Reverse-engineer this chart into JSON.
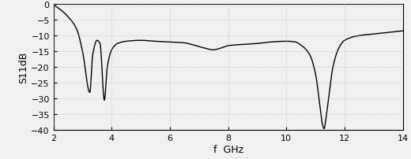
{
  "title": "",
  "xlabel": "f  GHz",
  "ylabel": "S11dB",
  "xlim": [
    2,
    14
  ],
  "ylim": [
    -40,
    0
  ],
  "xticks": [
    2,
    4,
    6,
    8,
    10,
    12,
    14
  ],
  "yticks": [
    0,
    -5,
    -10,
    -15,
    -20,
    -25,
    -30,
    -35,
    -40
  ],
  "line_color": "#000000",
  "line_width": 1.0,
  "background_color": "#f0f0f0",
  "figsize": [
    5.2,
    2.03
  ],
  "dpi": 100,
  "curve_points": [
    [
      2.0,
      -0.3
    ],
    [
      2.2,
      -1.5
    ],
    [
      2.5,
      -4.0
    ],
    [
      2.8,
      -8.0
    ],
    [
      3.0,
      -15.0
    ],
    [
      3.25,
      -28.0
    ],
    [
      3.35,
      -16.0
    ],
    [
      3.5,
      -11.5
    ],
    [
      3.6,
      -12.5
    ],
    [
      3.75,
      -30.5
    ],
    [
      3.85,
      -20.0
    ],
    [
      4.0,
      -14.5
    ],
    [
      4.2,
      -12.5
    ],
    [
      4.5,
      -11.8
    ],
    [
      5.0,
      -11.5
    ],
    [
      5.5,
      -11.8
    ],
    [
      6.0,
      -12.0
    ],
    [
      6.5,
      -12.3
    ],
    [
      7.0,
      -13.5
    ],
    [
      7.5,
      -14.5
    ],
    [
      7.8,
      -13.8
    ],
    [
      8.0,
      -13.2
    ],
    [
      8.5,
      -12.8
    ],
    [
      9.0,
      -12.5
    ],
    [
      9.5,
      -12.0
    ],
    [
      10.0,
      -11.8
    ],
    [
      10.3,
      -12.0
    ],
    [
      10.5,
      -13.0
    ],
    [
      10.8,
      -16.0
    ],
    [
      11.0,
      -22.0
    ],
    [
      11.15,
      -32.0
    ],
    [
      11.25,
      -38.5
    ],
    [
      11.3,
      -39.5
    ],
    [
      11.35,
      -37.0
    ],
    [
      11.45,
      -30.0
    ],
    [
      11.6,
      -20.0
    ],
    [
      11.8,
      -14.0
    ],
    [
      12.0,
      -11.5
    ],
    [
      12.5,
      -10.0
    ],
    [
      13.0,
      -9.5
    ],
    [
      13.5,
      -9.0
    ],
    [
      14.0,
      -8.5
    ]
  ]
}
